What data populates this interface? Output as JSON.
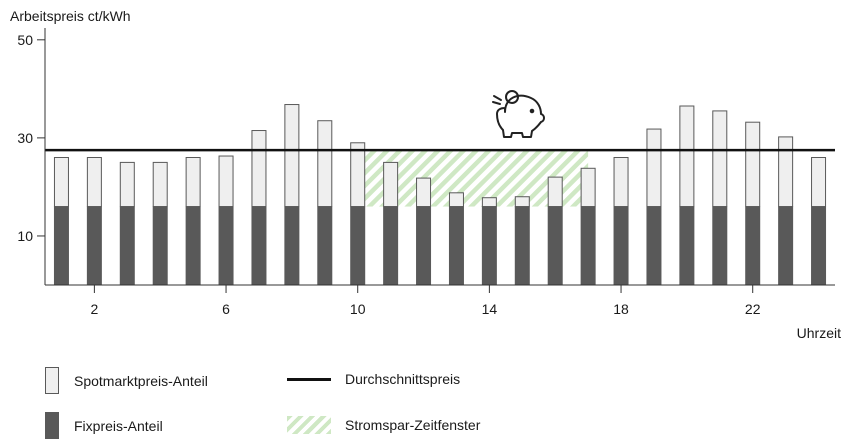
{
  "chart_data": {
    "type": "bar",
    "ylabel": "Arbeitspreis ct/kWh",
    "xlabel": "Uhrzeit",
    "ylim": [
      0,
      52
    ],
    "xlim": [
      0.5,
      24.5
    ],
    "yticks": [
      10,
      30,
      50
    ],
    "xticks": [
      2,
      6,
      10,
      14,
      18,
      22
    ],
    "x": [
      1,
      2,
      3,
      4,
      5,
      6,
      7,
      8,
      9,
      10,
      11,
      12,
      13,
      14,
      15,
      16,
      17,
      18,
      19,
      20,
      21,
      22,
      23,
      24
    ],
    "series": [
      {
        "name": "Fixpreis-Anteil",
        "values": [
          16,
          16,
          16,
          16,
          16,
          16,
          16,
          16,
          16,
          16,
          16,
          16,
          16,
          16,
          16,
          16,
          16,
          16,
          16,
          16,
          16,
          16,
          16,
          16
        ]
      },
      {
        "name": "Spotmarktpreis-Anteil",
        "values": [
          10,
          10,
          9,
          9,
          10,
          10.3,
          15.5,
          20.8,
          17.5,
          13,
          9,
          5.8,
          2.8,
          1.8,
          2,
          6,
          7.8,
          10,
          15.8,
          20.5,
          19.5,
          17.2,
          14.2,
          10
        ]
      }
    ],
    "average_line": {
      "name": "Durchschnittspreis",
      "value": 27.5
    },
    "saving_window": {
      "name": "Stromspar-Zeitfenster",
      "x_from": 10,
      "x_to": 17,
      "y_from": 16,
      "y_to": 27.5
    },
    "colors": {
      "fix": "#595959",
      "spot": "#efefef",
      "spot_border": "#595959",
      "average": "#111111",
      "window": "#cfe8c4"
    },
    "annotation_icon": "piggy-bank-icon",
    "grid": false,
    "legend_position": "bottom"
  },
  "legend": {
    "spot_label": "Spotmarktpreis-Anteil",
    "average_label": "Durchschnittspreis",
    "fix_label": "Fixpreis-Anteil",
    "window_label": "Stromspar-Zeitfenster"
  }
}
